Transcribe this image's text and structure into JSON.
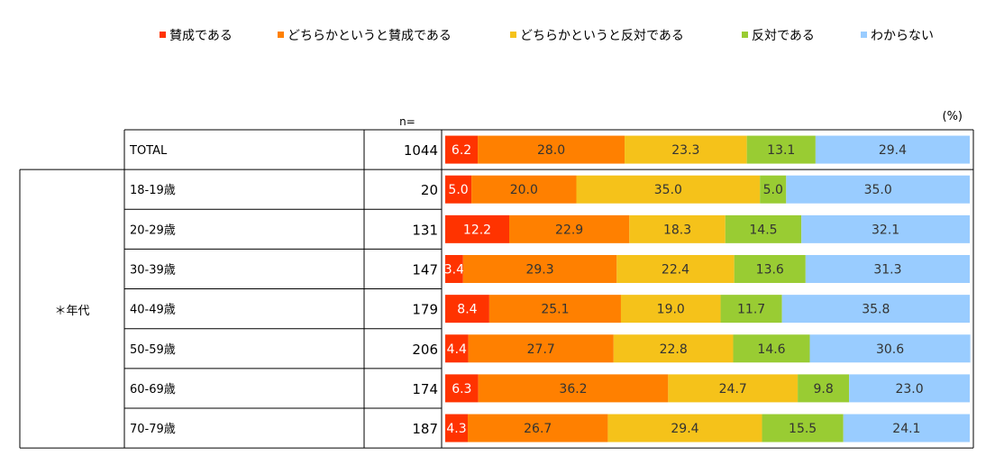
{
  "legend": {
    "items": [
      {
        "label": "賛成である",
        "color": "#ff3300"
      },
      {
        "label": "どちらかというと賛成である",
        "color": "#ff8000"
      },
      {
        "label": "どちらかというと反対である",
        "color": "#f5c21a"
      },
      {
        "label": "反対である",
        "color": "#99cc33"
      },
      {
        "label": "わからない",
        "color": "#99ccff"
      }
    ]
  },
  "n_header": "n=",
  "percent_unit": "(%)",
  "group_label": "＊年代",
  "chart_data": {
    "type": "bar",
    "orientation": "horizontal",
    "stacked": true,
    "unit": "%",
    "categories": [
      "TOTAL",
      "18-19歳",
      "20-29歳",
      "30-39歳",
      "40-49歳",
      "50-59歳",
      "60-69歳",
      "70-79歳"
    ],
    "n": [
      1044,
      20,
      131,
      147,
      179,
      206,
      174,
      187
    ],
    "series": [
      {
        "name": "賛成である",
        "color": "#ff3300",
        "values": [
          6.2,
          5.0,
          12.2,
          3.4,
          8.4,
          4.4,
          6.3,
          4.3
        ]
      },
      {
        "name": "どちらかというと賛成である",
        "color": "#ff8000",
        "values": [
          28.0,
          20.0,
          22.9,
          29.3,
          25.1,
          27.7,
          36.2,
          26.7
        ]
      },
      {
        "name": "どちらかというと反対である",
        "color": "#f5c21a",
        "values": [
          23.3,
          35.0,
          18.3,
          22.4,
          19.0,
          22.8,
          24.7,
          29.4
        ]
      },
      {
        "name": "反対である",
        "color": "#99cc33",
        "values": [
          13.1,
          5.0,
          14.5,
          13.6,
          11.7,
          14.6,
          9.8,
          15.5
        ]
      },
      {
        "name": "わからない",
        "color": "#99ccff",
        "values": [
          29.4,
          35.0,
          32.1,
          31.3,
          35.8,
          30.6,
          23.0,
          24.1
        ]
      }
    ],
    "label_colors": [
      "#ffffff",
      "#333333",
      "#333333",
      "#333333",
      "#333333"
    ],
    "xlim": [
      0,
      100
    ]
  }
}
